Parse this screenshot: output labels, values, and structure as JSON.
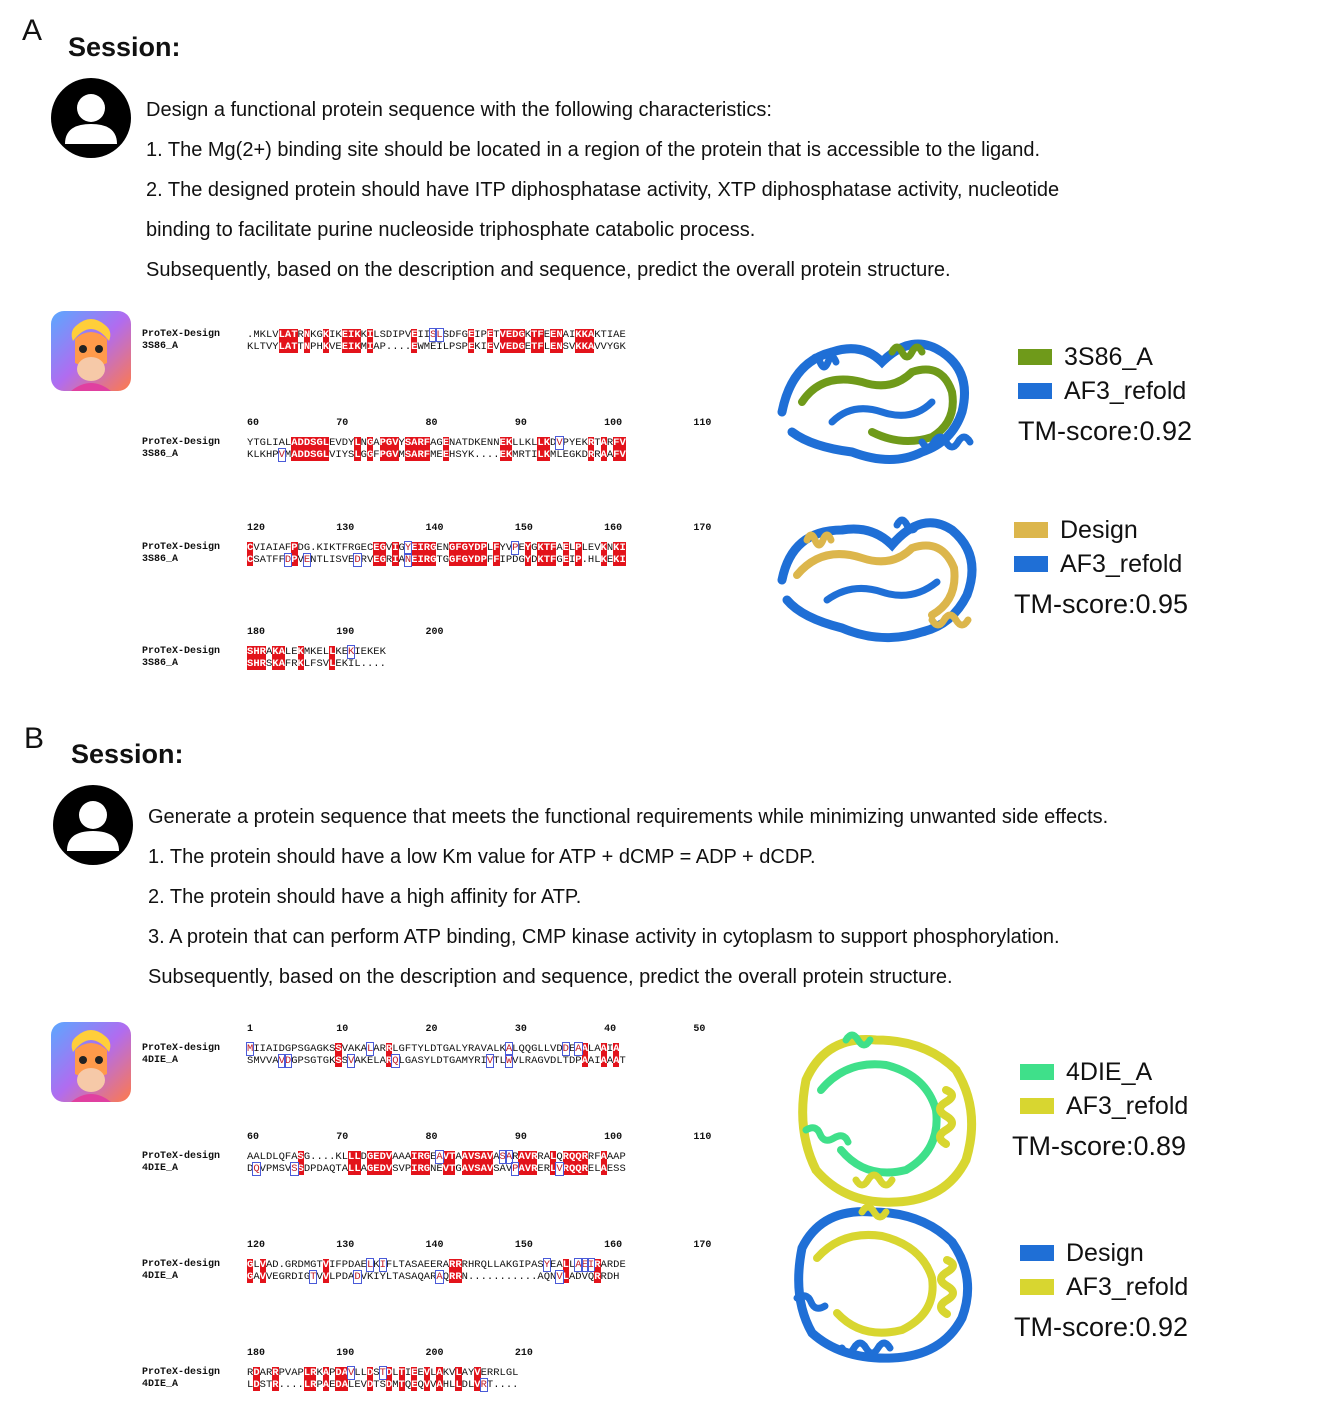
{
  "panelA": {
    "letter": "A",
    "session_label": "Session:",
    "prompt_lines": [
      "Design a functional protein sequence with the following characteristics:",
      "1. The Mg(2+) binding site should be located in a region of the protein that is accessible to the ligand.",
      "2. The designed protein should have ITP diphosphatase activity, XTP diphosphatase activity, nucleotide",
      "binding to facilitate purine nucleoside triphosphate catabolic process.",
      "Subsequently, based on the description and sequence, predict the overall protein structure."
    ],
    "alignment": {
      "seq_names": [
        "ProTeX-Design",
        "3S86_A"
      ],
      "blocks": [
        {
          "ruler": [],
          "seqs": [
            ".MKLVLATRNKGKIKEIKKILSDIPVEIISLSDFGEIPETVEDGKTFEENAIKKAKTIAE",
            "KLTVYLATTNPHKVEEIKMIAP....EWMEILPSPEKIEVVEDGETFLENSVKKAVVYGK"
          ]
        },
        {
          "ruler": [
            "60",
            "70",
            "80",
            "90",
            "100",
            "110"
          ],
          "seqs": [
            "YTGLIALADDSGLEVDYLNGAPGVYSARFAGENATDKENNEKLLKLLKDVPYEKRTARFV",
            "KLKHPVMADDSGLVIYSLGGFPGVMSARFMEEHSYK....EKMRTILKMLEGKDRRAAFV"
          ]
        },
        {
          "ruler": [
            "120",
            "130",
            "140",
            "150",
            "160",
            "170"
          ],
          "seqs": [
            "CVIAIAFPDG.KIKTFRGECEGVIGYEIRGENGFGYDPLFYVPEYGKTFAELPLEVKNKI",
            "CSATFFDPVENTLISVEDRVEGRIANEIRGTGGFGYDPFFIPDGYDKTFGEIP.HLKEKI"
          ]
        },
        {
          "ruler": [
            "180",
            "190",
            "200"
          ],
          "seqs": [
            "SHRAKALEKMKELLKEKIEKEK",
            "SHRSKAFRKLFSVLEKIL...."
          ]
        }
      ]
    },
    "legend1": {
      "items": [
        {
          "label": "3S86_A",
          "color": "#6f9a1a"
        },
        {
          "label": "AF3_refold",
          "color": "#1f6fd6"
        }
      ],
      "tm": "TM-score:0.92"
    },
    "legend2": {
      "items": [
        {
          "label": "Design",
          "color": "#dcb64c"
        },
        {
          "label": "AF3_refold",
          "color": "#1f6fd6"
        }
      ],
      "tm": "TM-score:0.95"
    }
  },
  "panelB": {
    "letter": "B",
    "session_label": "Session:",
    "prompt_lines": [
      "Generate a protein sequence that meets the functional requirements while minimizing unwanted side effects.",
      "1. The protein should have a low Km value for ATP + dCMP = ADP + dCDP.",
      "2. The protein should have a high affinity for ATP.",
      "3. A protein that can perform ATP binding, CMP kinase activity in cytoplasm to support phosphorylation.",
      "Subsequently, based on the description and sequence, predict the overall protein structure."
    ],
    "alignment": {
      "seq_names": [
        "ProTeX-design",
        "4DIE_A"
      ],
      "blocks": [
        {
          "ruler": [
            "1",
            "10",
            "20",
            "30",
            "40",
            "50"
          ],
          "seqs": [
            "MIIAIDGPSGAGKSSVAKALARRLGFTYLDTGALYRAVALKALQQGLLVDDEAALAAIA",
            "SMVVAVDGPSGTGKSSVAKELARQLGASYLDTGAMYRIVTLWVLRAGVDLTDPAAIAAAT"
          ]
        },
        {
          "ruler": [
            "60",
            "70",
            "80",
            "90",
            "100",
            "110"
          ],
          "seqs": [
            "AALDLQFASG....KLLLDGEDVAAAIRGEAVTAAVSAVASARAVRRALQRQQRRFAAAP",
            "DQVPMSVSSDPDAQTALLAGEDVSVPIRGNEVTGAVSAVSAVPAVRERLVRQQRELAESS"
          ]
        },
        {
          "ruler": [
            "120",
            "130",
            "140",
            "150",
            "160",
            "170"
          ],
          "seqs": [
            "GLVAD.GRDMGTVIFPDAELKIFLTASAEERARRRHRQLLAKGIPASYEALLAEIRARDE",
            "GAVVEGRDIGTVVLPDADVKIYLTASAQARAQRRN...........AQNVLADVQRRDH"
          ]
        },
        {
          "ruler": [
            "180",
            "190",
            "200",
            "210"
          ],
          "seqs": [
            "RDARRPVAPLRKAPDAVLLDSTDLTIEEVLAKVLAYVERRLGL",
            "LDSTR....LRPAEDALEVDTSDMTQEQVVAHLLDLVRT...."
          ]
        }
      ]
    },
    "legend1": {
      "items": [
        {
          "label": "4DIE_A",
          "color": "#3fe08a"
        },
        {
          "label": "AF3_refold",
          "color": "#d8d630"
        }
      ],
      "tm": "TM-score:0.89"
    },
    "legend2": {
      "items": [
        {
          "label": "Design",
          "color": "#1f6fd6"
        },
        {
          "label": "AF3_refold",
          "color": "#d8d630"
        }
      ],
      "tm": "TM-score:0.92"
    }
  }
}
